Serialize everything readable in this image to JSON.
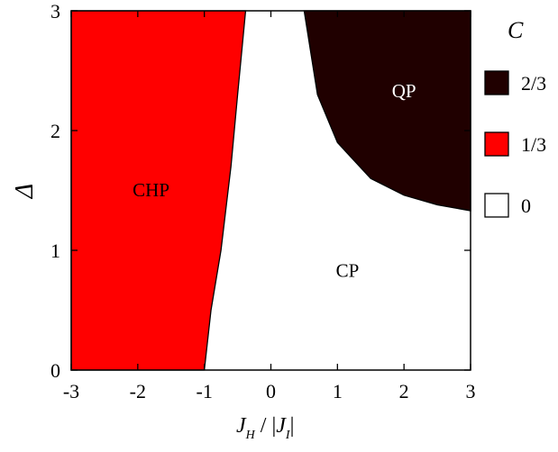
{
  "chart_data": {
    "type": "phase-diagram",
    "title": "",
    "xlabel": {
      "main": "J",
      "main_sub": "H",
      "sep": " / |",
      "den": "J",
      "den_sub": "I",
      "close": "|"
    },
    "ylabel": "Δ",
    "xlim": [
      -3,
      3
    ],
    "ylim": [
      0,
      3
    ],
    "xticks": [
      -3,
      -2,
      -1,
      0,
      1,
      2,
      3
    ],
    "yticks": [
      0,
      1,
      2,
      3
    ],
    "grid": false,
    "legend": {
      "title": "C",
      "placement": "right",
      "entries": [
        {
          "label": "2/3",
          "color": "#200000"
        },
        {
          "label": "1/3",
          "color": "#ff0000"
        },
        {
          "label": "0",
          "color": "#ffffff"
        }
      ]
    },
    "regions": [
      {
        "name": "CHP",
        "value": "1/3",
        "color": "#ff0000",
        "label_at": [
          -1.8,
          1.45
        ],
        "boundary": [
          [
            -1.0,
            0.0
          ],
          [
            -0.9,
            0.5
          ],
          [
            -0.75,
            1.0
          ],
          [
            -0.6,
            1.7
          ],
          [
            -0.5,
            2.3
          ],
          [
            -0.38,
            3.0
          ]
        ]
      },
      {
        "name": "QP",
        "value": "2/3",
        "color": "#200000",
        "label_at": [
          2.0,
          2.28
        ],
        "boundary": [
          [
            0.5,
            3.0
          ],
          [
            0.7,
            2.3
          ],
          [
            1.0,
            1.9
          ],
          [
            1.5,
            1.6
          ],
          [
            2.0,
            1.46
          ],
          [
            2.5,
            1.38
          ],
          [
            3.0,
            1.33
          ]
        ]
      },
      {
        "name": "CP",
        "value": "0",
        "color": "#ffffff",
        "label_at": [
          1.15,
          0.78
        ]
      }
    ]
  }
}
